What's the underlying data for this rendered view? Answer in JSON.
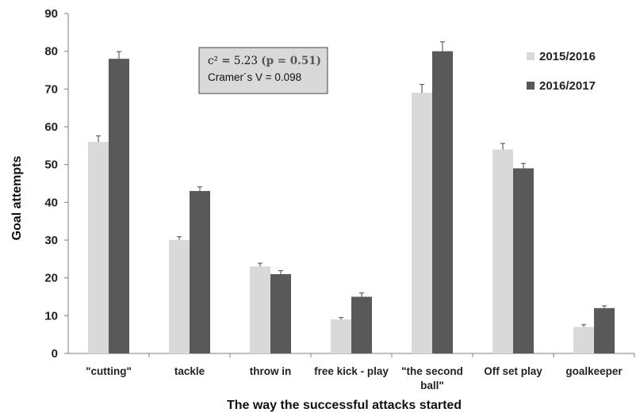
{
  "chart_data": {
    "type": "bar",
    "title": "",
    "xlabel": "The way the successful attacks started",
    "ylabel": "Goal attempts",
    "ylim": [
      0,
      90
    ],
    "yticks": [
      0,
      10,
      20,
      30,
      40,
      50,
      60,
      70,
      80,
      90
    ],
    "grid": false,
    "legend_position": "right",
    "categories": [
      [
        "\"cutting\""
      ],
      [
        "tackle"
      ],
      [
        "throw in"
      ],
      [
        "free kick - play"
      ],
      [
        "\"the second",
        "ball\""
      ],
      [
        "Off set play"
      ],
      [
        "goalkeeper"
      ]
    ],
    "series": [
      {
        "name": "2015/2016",
        "color": "#d9d9d9",
        "values": [
          56,
          30,
          23,
          9,
          69,
          54,
          7
        ],
        "errors": [
          1.6,
          0.9,
          0.9,
          0.5,
          2.2,
          1.6,
          0.6
        ]
      },
      {
        "name": "2016/2017",
        "color": "#595959",
        "values": [
          78,
          43,
          21,
          15,
          80,
          49,
          12
        ],
        "errors": [
          1.9,
          1.1,
          0.9,
          1.0,
          2.5,
          1.3,
          0.6
        ]
      }
    ],
    "annotation": {
      "chi_prefix": "c² = 5.23 ",
      "p_text": "(p = 0.51)",
      "cramer": "Cramer´s V = 0.098"
    }
  }
}
